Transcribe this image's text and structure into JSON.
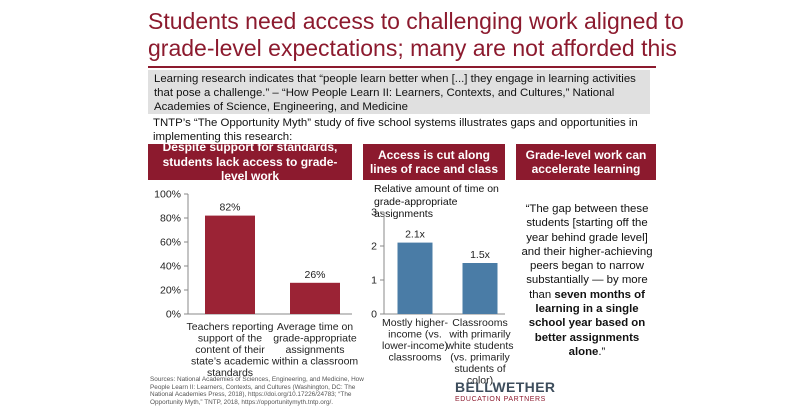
{
  "title": "Students need access to challenging work aligned to grade-level expectations; many are not afforded this access",
  "quote_box": "Learning research indicates that “people learn better when [...] they engage in learning activities that pose a challenge.” – “How People Learn II: Learners, Contexts, and Cultures,” National Academies of Science, Engineering, and Medicine",
  "intro": "TNTP’s “The Opportunity Myth” study of five school systems illustrates gaps and opportunities in implementing this research:",
  "panels": [
    {
      "heading": "Despite support for standards, students lack access to grade-level work"
    },
    {
      "heading": "Access is cut along lines of race and class"
    },
    {
      "heading": "Grade-level work can accelerate learning"
    }
  ],
  "chart_data": [
    {
      "type": "bar",
      "categories": [
        [
          "Teachers reporting",
          "support of the",
          "content of their",
          "state’s academic",
          "standards"
        ],
        [
          "Average time on",
          "grade-appropriate",
          "assignments",
          "within a classroom"
        ]
      ],
      "values": [
        82,
        26
      ],
      "data_labels": [
        "82%",
        "26%"
      ],
      "yticks": [
        "0%",
        "20%",
        "40%",
        "60%",
        "80%",
        "100%"
      ],
      "ylim": [
        0,
        100
      ],
      "color": "#9b2335",
      "grid": false
    },
    {
      "type": "bar",
      "subtitle": "Relative amount of time on grade-appropriate assignments",
      "categories": [
        [
          "Mostly higher-",
          "income (vs.",
          "lower-income)",
          "classrooms"
        ],
        [
          "Classrooms",
          "with primarily",
          "white students",
          "(vs. primarily",
          "students of",
          "color)"
        ]
      ],
      "values": [
        2.1,
        1.5
      ],
      "data_labels": [
        "2.1x",
        "1.5x"
      ],
      "yticks": [
        "0",
        "1",
        "2",
        "3"
      ],
      "ylim": [
        0,
        3
      ],
      "color": "#4a7ca6",
      "grid": false
    }
  ],
  "panel3_quote": {
    "part1": "“The gap between these students [starting off the year behind grade level] and their higher-achieving peers began to narrow substantially — by more than ",
    "bold": "seven months of learning in a single school year based on better assignments alone",
    "part2": ".”"
  },
  "sources": "Sources: National Academies of Sciences, Engineering, and Medicine, How People Learn II: Learners, Contexts, and Cultures (Washington, DC: The National Academies Press, 2018), https://doi.org/10.17226/24783; “The Opportunity Myth,” TNTP, 2018, https://opportunitymyth.tntp.org/.",
  "logo": {
    "main": "BELLWETHER",
    "sub": "EDUCATION PARTNERS"
  }
}
